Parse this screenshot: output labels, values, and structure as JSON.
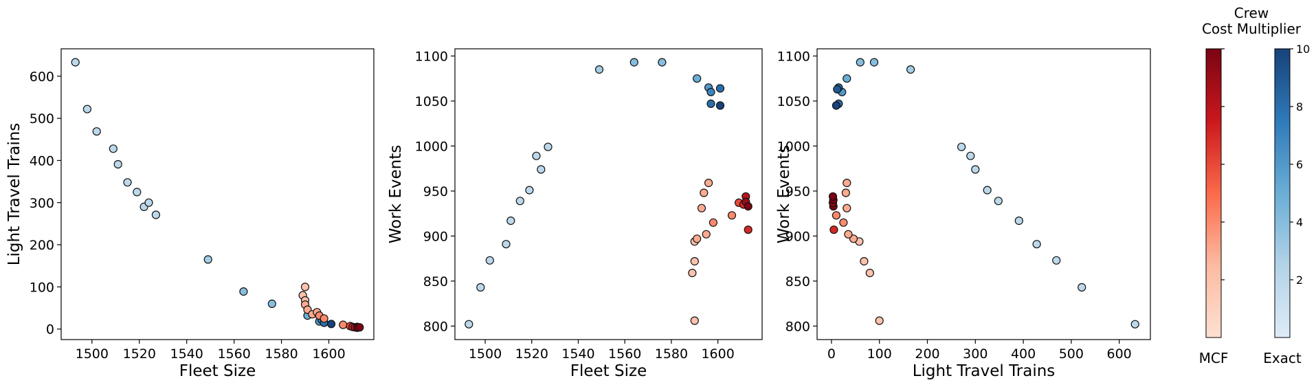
{
  "chart_data": [
    {
      "type": "scatter",
      "xlabel": "Fleet Size",
      "ylabel": "Light Travel Trains",
      "xlim": [
        1487,
        1619
      ],
      "ylim": [
        -25,
        665
      ],
      "xticks": [
        1500,
        1520,
        1540,
        1560,
        1580,
        1600
      ],
      "yticks": [
        0,
        100,
        200,
        300,
        400,
        500,
        600
      ],
      "grid": false,
      "series": [
        {
          "cmap": "Blues",
          "points": [
            {
              "x": 1493,
              "y": 633,
              "c": 2
            },
            {
              "x": 1498,
              "y": 522,
              "c": 2
            },
            {
              "x": 1502,
              "y": 469,
              "c": 2
            },
            {
              "x": 1509,
              "y": 428,
              "c": 2
            },
            {
              "x": 1511,
              "y": 391,
              "c": 2
            },
            {
              "x": 1515,
              "y": 348,
              "c": 2
            },
            {
              "x": 1519,
              "y": 325,
              "c": 2
            },
            {
              "x": 1522,
              "y": 290,
              "c": 2
            },
            {
              "x": 1524,
              "y": 300,
              "c": 2
            },
            {
              "x": 1527,
              "y": 271,
              "c": 2
            },
            {
              "x": 1549,
              "y": 165,
              "c": 3
            },
            {
              "x": 1564,
              "y": 89,
              "c": 4
            },
            {
              "x": 1576,
              "y": 60,
              "c": 4
            },
            {
              "x": 1591,
              "y": 32,
              "c": 5
            },
            {
              "x": 1596,
              "y": 18,
              "c": 6
            },
            {
              "x": 1597,
              "y": 22,
              "c": 7
            },
            {
              "x": 1598,
              "y": 15,
              "c": 8
            },
            {
              "x": 1601,
              "y": 12,
              "c": 10
            }
          ]
        },
        {
          "cmap": "Reds",
          "points": [
            {
              "x": 1589,
              "y": 80,
              "c": 2
            },
            {
              "x": 1590,
              "y": 100,
              "c": 2
            },
            {
              "x": 1590,
              "y": 68,
              "c": 2
            },
            {
              "x": 1590,
              "y": 58,
              "c": 3
            },
            {
              "x": 1591,
              "y": 46,
              "c": 3
            },
            {
              "x": 1593,
              "y": 35,
              "c": 3
            },
            {
              "x": 1595,
              "y": 40,
              "c": 3
            },
            {
              "x": 1596,
              "y": 32,
              "c": 4
            },
            {
              "x": 1598,
              "y": 25,
              "c": 4
            },
            {
              "x": 1606,
              "y": 10,
              "c": 4
            },
            {
              "x": 1609,
              "y": 7,
              "c": 6
            },
            {
              "x": 1610,
              "y": 5,
              "c": 7
            },
            {
              "x": 1611,
              "y": 4,
              "c": 8
            },
            {
              "x": 1612,
              "y": 5,
              "c": 9
            },
            {
              "x": 1612,
              "y": 3,
              "c": 10
            },
            {
              "x": 1613,
              "y": 4,
              "c": 10
            }
          ]
        }
      ]
    },
    {
      "type": "scatter",
      "xlabel": "Fleet Size",
      "ylabel": "Work Events",
      "xlim": [
        1487,
        1619
      ],
      "ylim": [
        785,
        1108
      ],
      "xticks": [
        1500,
        1520,
        1540,
        1560,
        1580,
        1600
      ],
      "yticks": [
        800,
        850,
        900,
        950,
        1000,
        1050,
        1100
      ],
      "grid": false,
      "series": [
        {
          "cmap": "Blues",
          "points": [
            {
              "x": 1493,
              "y": 802,
              "c": 2
            },
            {
              "x": 1498,
              "y": 843,
              "c": 2
            },
            {
              "x": 1502,
              "y": 873,
              "c": 2
            },
            {
              "x": 1509,
              "y": 891,
              "c": 2
            },
            {
              "x": 1511,
              "y": 917,
              "c": 2
            },
            {
              "x": 1515,
              "y": 939,
              "c": 2
            },
            {
              "x": 1519,
              "y": 951,
              "c": 2
            },
            {
              "x": 1522,
              "y": 989,
              "c": 2
            },
            {
              "x": 1524,
              "y": 974,
              "c": 2
            },
            {
              "x": 1527,
              "y": 999,
              "c": 2
            },
            {
              "x": 1549,
              "y": 1085,
              "c": 3
            },
            {
              "x": 1564,
              "y": 1093,
              "c": 4
            },
            {
              "x": 1576,
              "y": 1093,
              "c": 4
            },
            {
              "x": 1591,
              "y": 1075,
              "c": 5
            },
            {
              "x": 1596,
              "y": 1065,
              "c": 6
            },
            {
              "x": 1597,
              "y": 1060,
              "c": 7
            },
            {
              "x": 1597,
              "y": 1047,
              "c": 8
            },
            {
              "x": 1601,
              "y": 1064,
              "c": 8
            },
            {
              "x": 1601,
              "y": 1045,
              "c": 10
            }
          ]
        },
        {
          "cmap": "Reds",
          "points": [
            {
              "x": 1589,
              "y": 859,
              "c": 2
            },
            {
              "x": 1590,
              "y": 806,
              "c": 2
            },
            {
              "x": 1590,
              "y": 872,
              "c": 2
            },
            {
              "x": 1590,
              "y": 894,
              "c": 2
            },
            {
              "x": 1591,
              "y": 897,
              "c": 3
            },
            {
              "x": 1593,
              "y": 931,
              "c": 3
            },
            {
              "x": 1594,
              "y": 948,
              "c": 3
            },
            {
              "x": 1595,
              "y": 902,
              "c": 3
            },
            {
              "x": 1596,
              "y": 959,
              "c": 3
            },
            {
              "x": 1598,
              "y": 915,
              "c": 4
            },
            {
              "x": 1606,
              "y": 923,
              "c": 4
            },
            {
              "x": 1609,
              "y": 937,
              "c": 6
            },
            {
              "x": 1611,
              "y": 935,
              "c": 7
            },
            {
              "x": 1612,
              "y": 944,
              "c": 8
            },
            {
              "x": 1612,
              "y": 938,
              "c": 9
            },
            {
              "x": 1613,
              "y": 933,
              "c": 10
            },
            {
              "x": 1613,
              "y": 907,
              "c": 7
            }
          ]
        }
      ]
    },
    {
      "type": "scatter",
      "xlabel": "Light Travel Trains",
      "ylabel": "Work Events",
      "xlim": [
        -30,
        665
      ],
      "ylim": [
        785,
        1108
      ],
      "xticks": [
        0,
        100,
        200,
        300,
        400,
        500,
        600
      ],
      "yticks": [
        800,
        850,
        900,
        950,
        1000,
        1050,
        1100
      ],
      "grid": false,
      "series": [
        {
          "cmap": "Blues",
          "points": [
            {
              "x": 633,
              "y": 802,
              "c": 2
            },
            {
              "x": 522,
              "y": 843,
              "c": 2
            },
            {
              "x": 469,
              "y": 873,
              "c": 2
            },
            {
              "x": 428,
              "y": 891,
              "c": 2
            },
            {
              "x": 391,
              "y": 917,
              "c": 2
            },
            {
              "x": 348,
              "y": 939,
              "c": 2
            },
            {
              "x": 325,
              "y": 951,
              "c": 2
            },
            {
              "x": 300,
              "y": 974,
              "c": 2
            },
            {
              "x": 290,
              "y": 989,
              "c": 2
            },
            {
              "x": 271,
              "y": 999,
              "c": 2
            },
            {
              "x": 165,
              "y": 1085,
              "c": 3
            },
            {
              "x": 89,
              "y": 1093,
              "c": 4
            },
            {
              "x": 60,
              "y": 1093,
              "c": 4
            },
            {
              "x": 32,
              "y": 1075,
              "c": 5
            },
            {
              "x": 22,
              "y": 1060,
              "c": 6
            },
            {
              "x": 15,
              "y": 1065,
              "c": 8
            },
            {
              "x": 12,
              "y": 1063,
              "c": 9
            },
            {
              "x": 15,
              "y": 1047,
              "c": 8
            },
            {
              "x": 10,
              "y": 1045,
              "c": 10
            }
          ]
        },
        {
          "cmap": "Reds",
          "points": [
            {
              "x": 100,
              "y": 806,
              "c": 2
            },
            {
              "x": 80,
              "y": 859,
              "c": 2
            },
            {
              "x": 68,
              "y": 872,
              "c": 2
            },
            {
              "x": 58,
              "y": 894,
              "c": 2
            },
            {
              "x": 46,
              "y": 897,
              "c": 3
            },
            {
              "x": 35,
              "y": 902,
              "c": 3
            },
            {
              "x": 25,
              "y": 915,
              "c": 4
            },
            {
              "x": 10,
              "y": 923,
              "c": 4
            },
            {
              "x": 32,
              "y": 931,
              "c": 3
            },
            {
              "x": 30,
              "y": 948,
              "c": 3
            },
            {
              "x": 32,
              "y": 959,
              "c": 3
            },
            {
              "x": 5,
              "y": 907,
              "c": 7
            },
            {
              "x": 4,
              "y": 933,
              "c": 10
            },
            {
              "x": 3,
              "y": 937,
              "c": 9
            },
            {
              "x": 4,
              "y": 940,
              "c": 10
            },
            {
              "x": 3,
              "y": 944,
              "c": 10
            }
          ]
        }
      ]
    }
  ],
  "colorbars": {
    "title_line1": "Crew",
    "title_line2": "Cost Multiplier",
    "range": [
      0,
      10
    ],
    "ticks": [
      2,
      4,
      6,
      8,
      10
    ],
    "bars": [
      {
        "label": "MCF",
        "cmap": "Reds",
        "light": "#fee0d2",
        "dark": "#67000d",
        "show_tick_labels": false
      },
      {
        "label": "Exact",
        "cmap": "Blues",
        "light": "#deebf7",
        "dark": "#08306b",
        "show_tick_labels": true
      }
    ]
  }
}
